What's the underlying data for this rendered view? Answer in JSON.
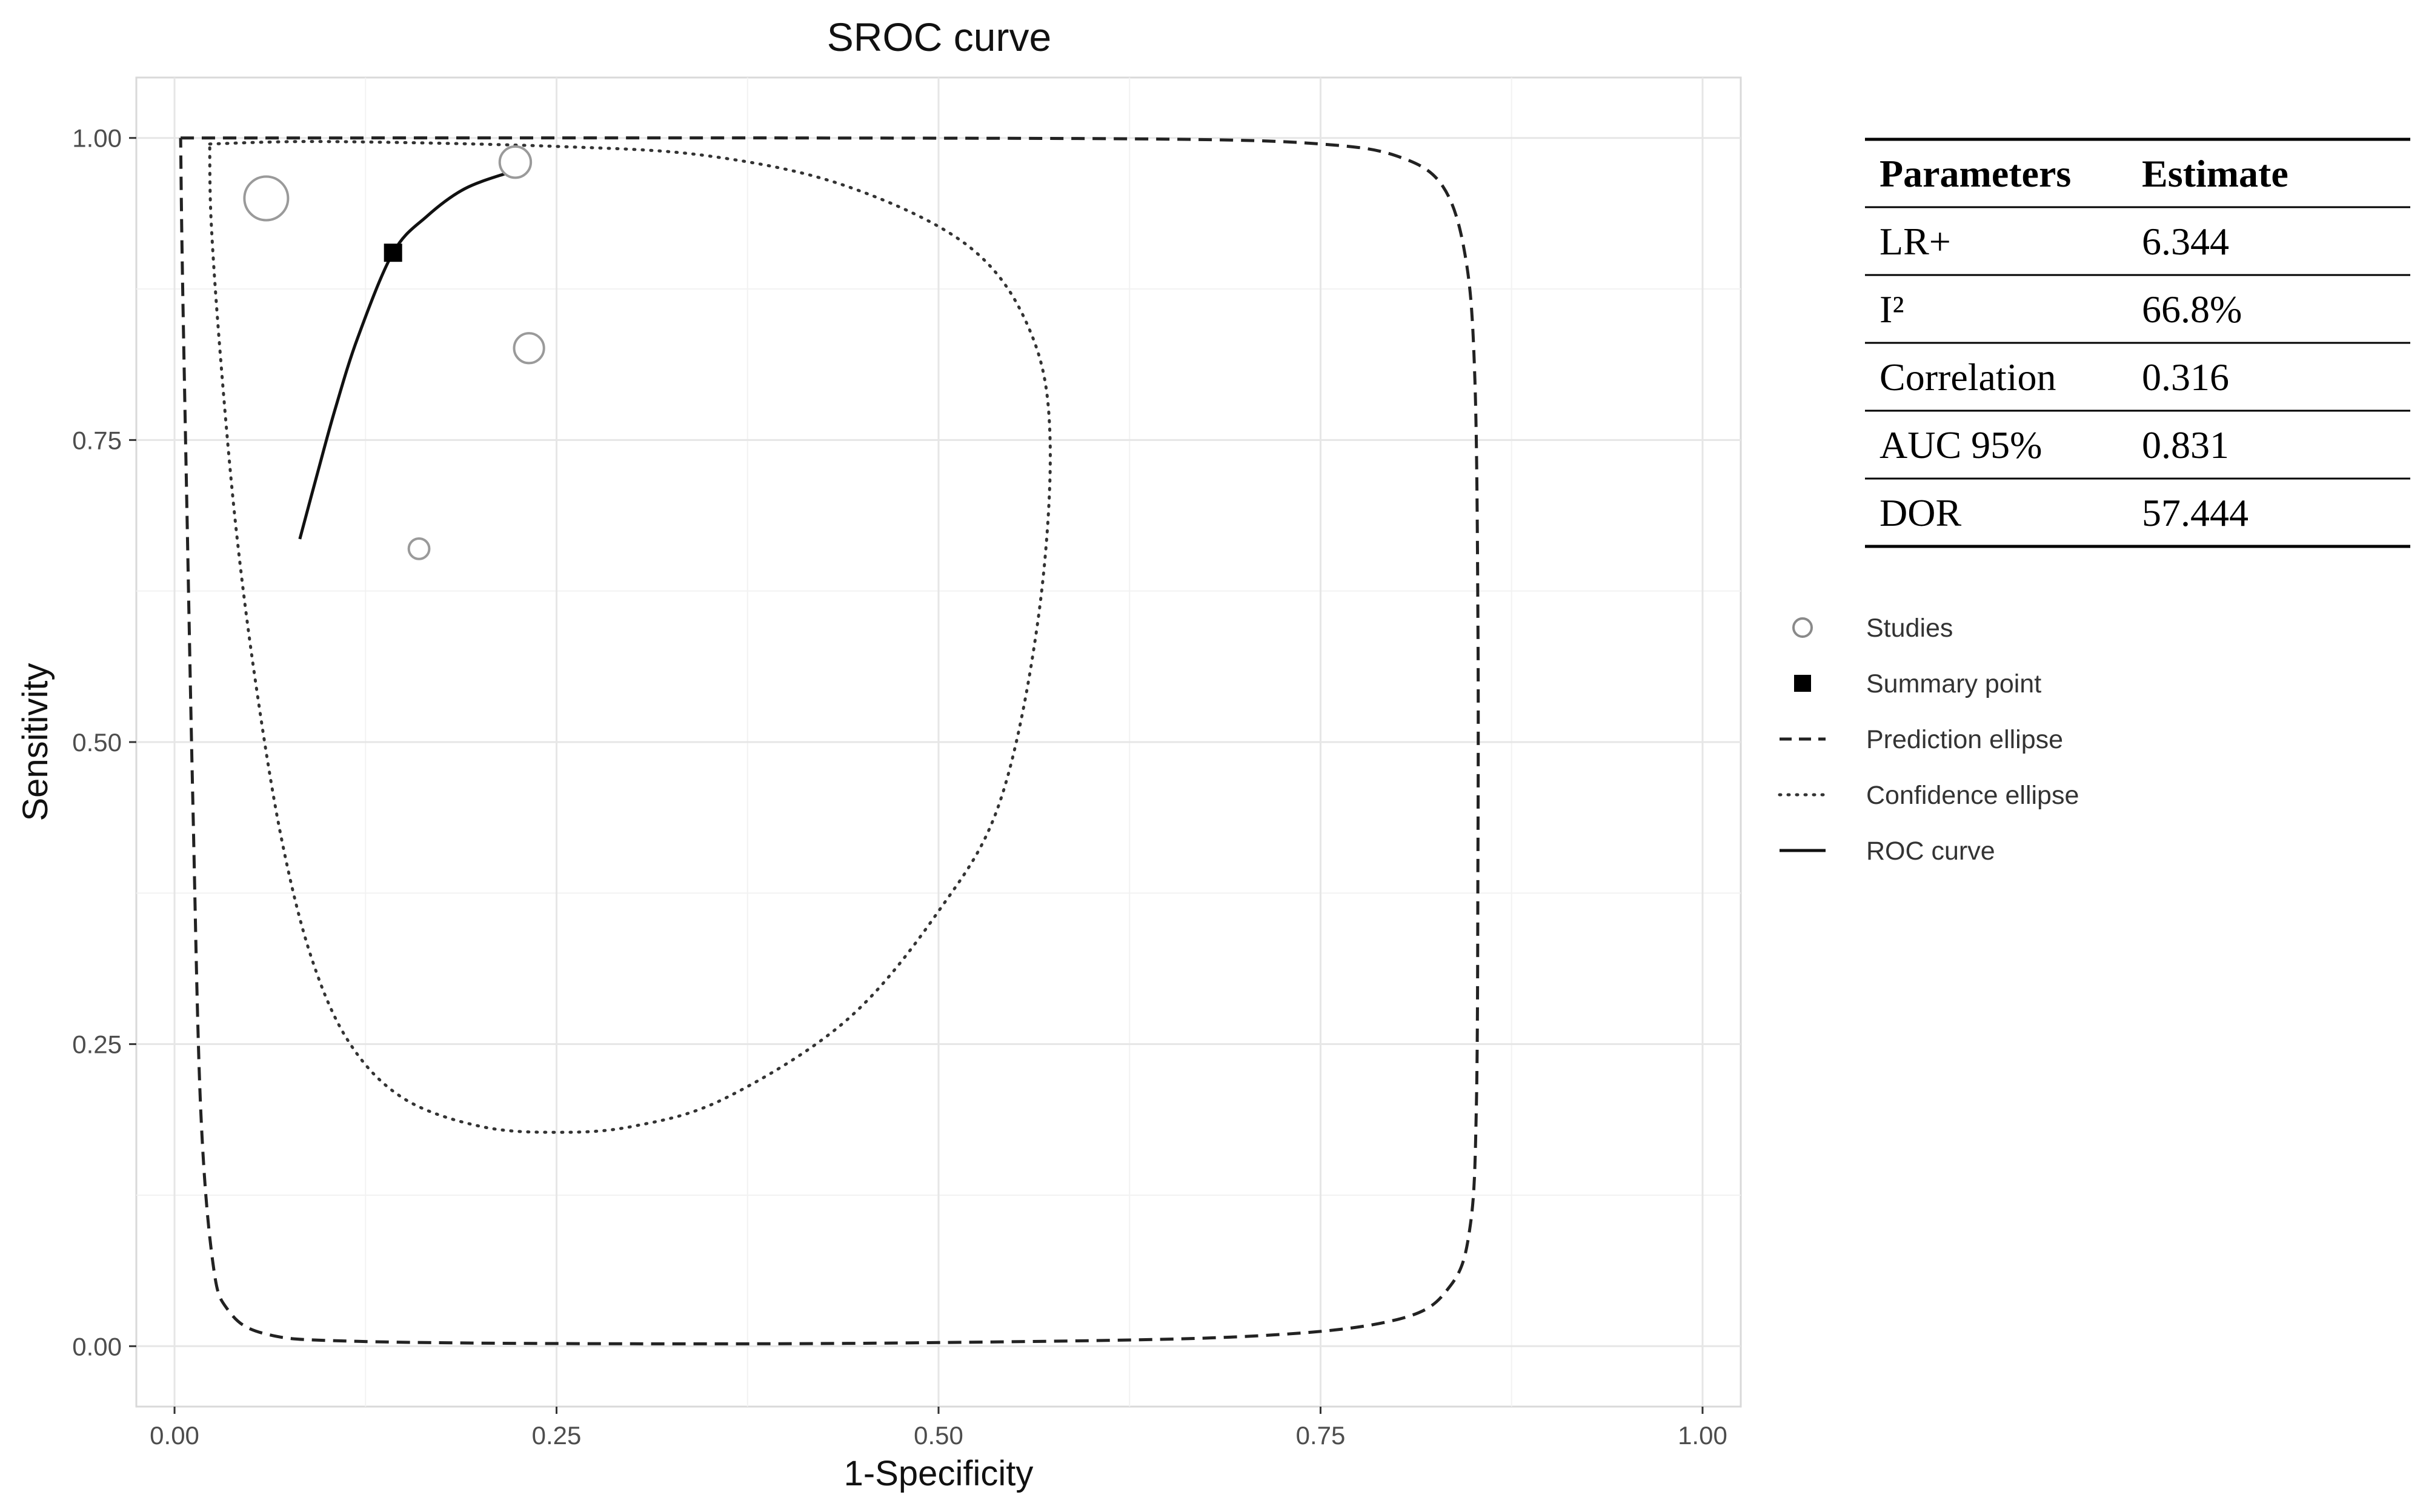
{
  "chart_data": {
    "type": "scatter",
    "title": "SROC curve",
    "xlabel": "1-Specificity",
    "ylabel": "Sensitivity",
    "xlim": [
      -0.025,
      1.025
    ],
    "ylim": [
      -0.05,
      1.05
    ],
    "x_ticks": [
      0,
      0.25,
      0.5,
      0.75,
      1
    ],
    "y_ticks": [
      0,
      0.25,
      0.5,
      0.75,
      1
    ],
    "x_tick_labels": [
      "0.00",
      "0.25",
      "0.50",
      "0.75",
      "1.00"
    ],
    "y_tick_labels": [
      "0.00",
      "0.25",
      "0.50",
      "0.75",
      "1.00"
    ],
    "grid": true,
    "legend_position": "right",
    "studies": [
      {
        "x": 0.06,
        "y": 0.95,
        "weight": 1.0
      },
      {
        "x": 0.223,
        "y": 0.98,
        "weight": 0.4
      },
      {
        "x": 0.232,
        "y": 0.826,
        "weight": 0.35
      },
      {
        "x": 0.16,
        "y": 0.66,
        "weight": 0.1
      }
    ],
    "summary_point": {
      "x": 0.143,
      "y": 0.905
    },
    "roc_curve": [
      {
        "x": 0.082,
        "y": 0.668
      },
      {
        "x": 0.093,
        "y": 0.72
      },
      {
        "x": 0.105,
        "y": 0.775
      },
      {
        "x": 0.12,
        "y": 0.835
      },
      {
        "x": 0.143,
        "y": 0.905
      },
      {
        "x": 0.165,
        "y": 0.935
      },
      {
        "x": 0.19,
        "y": 0.958
      },
      {
        "x": 0.22,
        "y": 0.972
      },
      {
        "x": 0.229,
        "y": 0.976
      }
    ],
    "confidence_ellipse": [
      {
        "x": 0.023,
        "y": 0.995
      },
      {
        "x": 0.1,
        "y": 0.997
      },
      {
        "x": 0.25,
        "y": 0.993
      },
      {
        "x": 0.35,
        "y": 0.985
      },
      {
        "x": 0.44,
        "y": 0.96
      },
      {
        "x": 0.52,
        "y": 0.91
      },
      {
        "x": 0.56,
        "y": 0.84
      },
      {
        "x": 0.573,
        "y": 0.75
      },
      {
        "x": 0.565,
        "y": 0.6
      },
      {
        "x": 0.54,
        "y": 0.45
      },
      {
        "x": 0.5,
        "y": 0.36
      },
      {
        "x": 0.44,
        "y": 0.27
      },
      {
        "x": 0.36,
        "y": 0.205
      },
      {
        "x": 0.3,
        "y": 0.182
      },
      {
        "x": 0.25,
        "y": 0.177
      },
      {
        "x": 0.2,
        "y": 0.182
      },
      {
        "x": 0.15,
        "y": 0.205
      },
      {
        "x": 0.115,
        "y": 0.25
      },
      {
        "x": 0.09,
        "y": 0.32
      },
      {
        "x": 0.07,
        "y": 0.42
      },
      {
        "x": 0.053,
        "y": 0.55
      },
      {
        "x": 0.04,
        "y": 0.68
      },
      {
        "x": 0.03,
        "y": 0.82
      },
      {
        "x": 0.024,
        "y": 0.93
      },
      {
        "x": 0.023,
        "y": 0.995
      }
    ],
    "prediction_ellipse": [
      {
        "x": 0.004,
        "y": 1.0
      },
      {
        "x": 0.1,
        "y": 1.0
      },
      {
        "x": 0.4,
        "y": 1.0
      },
      {
        "x": 0.65,
        "y": 0.999
      },
      {
        "x": 0.75,
        "y": 0.995
      },
      {
        "x": 0.8,
        "y": 0.985
      },
      {
        "x": 0.83,
        "y": 0.96
      },
      {
        "x": 0.845,
        "y": 0.9
      },
      {
        "x": 0.851,
        "y": 0.8
      },
      {
        "x": 0.853,
        "y": 0.6
      },
      {
        "x": 0.853,
        "y": 0.4
      },
      {
        "x": 0.852,
        "y": 0.2
      },
      {
        "x": 0.848,
        "y": 0.1
      },
      {
        "x": 0.835,
        "y": 0.05
      },
      {
        "x": 0.8,
        "y": 0.022
      },
      {
        "x": 0.7,
        "y": 0.008
      },
      {
        "x": 0.5,
        "y": 0.003
      },
      {
        "x": 0.3,
        "y": 0.002
      },
      {
        "x": 0.12,
        "y": 0.004
      },
      {
        "x": 0.06,
        "y": 0.01
      },
      {
        "x": 0.035,
        "y": 0.03
      },
      {
        "x": 0.025,
        "y": 0.07
      },
      {
        "x": 0.017,
        "y": 0.2
      },
      {
        "x": 0.012,
        "y": 0.45
      },
      {
        "x": 0.008,
        "y": 0.7
      },
      {
        "x": 0.005,
        "y": 0.9
      },
      {
        "x": 0.004,
        "y": 1.0
      }
    ],
    "legend": [
      {
        "label": "Studies",
        "symbol": "circle"
      },
      {
        "label": "Summary point",
        "symbol": "square"
      },
      {
        "label": "Prediction ellipse",
        "symbol": "dashed"
      },
      {
        "label": "Confidence ellipse",
        "symbol": "dotted"
      },
      {
        "label": "ROC curve",
        "symbol": "solid"
      }
    ],
    "table": {
      "headers": [
        "Parameters",
        "Estimate"
      ],
      "rows": [
        [
          "LR+",
          "6.344"
        ],
        [
          "I²",
          "66.8%"
        ],
        [
          "Correlation",
          "0.316"
        ],
        [
          "AUC 95%",
          "0.831"
        ],
        [
          "DOR",
          "57.444"
        ]
      ]
    }
  }
}
